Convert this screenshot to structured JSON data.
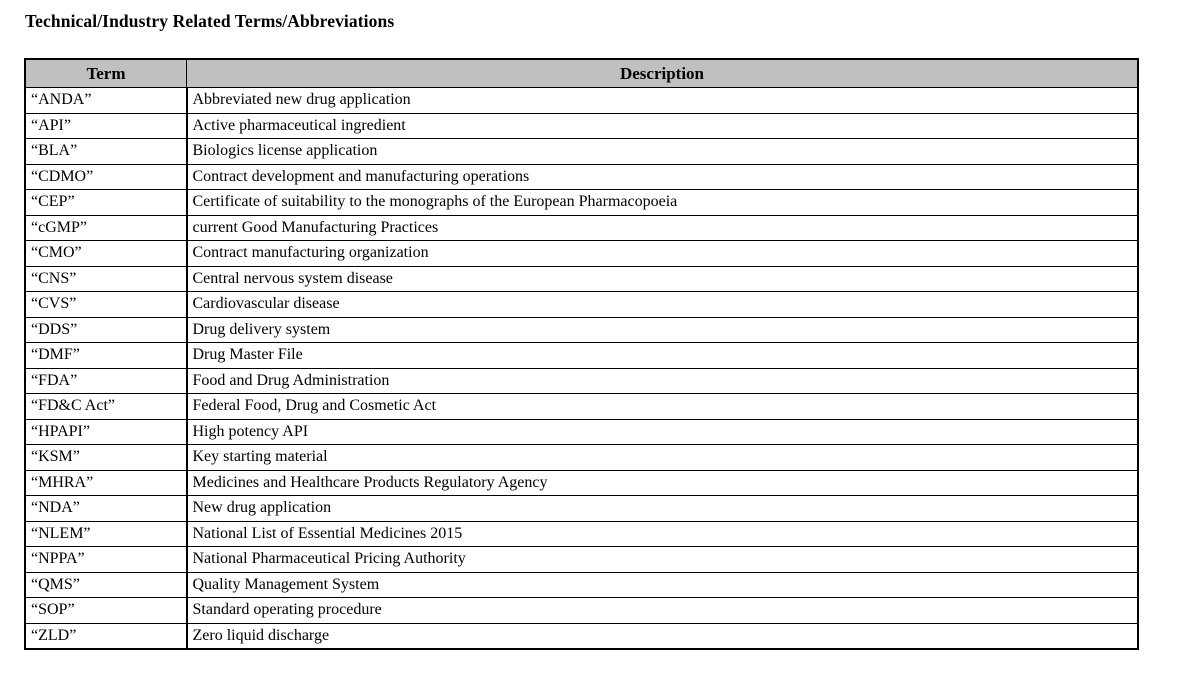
{
  "page": {
    "title": "Technical/Industry Related Terms/Abbreviations"
  },
  "table": {
    "headers": [
      "Term",
      "Description"
    ],
    "rows": [
      {
        "term": "“ANDA”",
        "description": "Abbreviated new drug application"
      },
      {
        "term": "“API”",
        "description": "Active pharmaceutical ingredient"
      },
      {
        "term": "“BLA”",
        "description": "Biologics license application"
      },
      {
        "term": "“CDMO”",
        "description": "Contract development and manufacturing operations"
      },
      {
        "term": "“CEP”",
        "description": "Certificate of suitability to the monographs of the European Pharmacopoeia"
      },
      {
        "term": "“cGMP”",
        "description": "current Good Manufacturing Practices"
      },
      {
        "term": "“CMO”",
        "description": "Contract manufacturing organization"
      },
      {
        "term": "“CNS”",
        "description": "Central nervous system disease"
      },
      {
        "term": "“CVS”",
        "description": "Cardiovascular disease"
      },
      {
        "term": "“DDS”",
        "description": "Drug delivery system"
      },
      {
        "term": "“DMF”",
        "description": "Drug Master File"
      },
      {
        "term": "“FDA”",
        "description": "Food and Drug Administration"
      },
      {
        "term": "“FD&C Act”",
        "description": "Federal Food, Drug and Cosmetic Act"
      },
      {
        "term": "“HPAPI”",
        "description": "High potency API"
      },
      {
        "term": "“KSM”",
        "description": "Key starting material"
      },
      {
        "term": "“MHRA”",
        "description": "Medicines and Healthcare Products Regulatory Agency"
      },
      {
        "term": "“NDA”",
        "description": "New drug application"
      },
      {
        "term": "“NLEM”",
        "description": "National List of Essential Medicines 2015"
      },
      {
        "term": "“NPPA”",
        "description": "National Pharmaceutical Pricing Authority"
      },
      {
        "term": "“QMS”",
        "description": "Quality Management System"
      },
      {
        "term": "“SOP”",
        "description": "Standard operating procedure"
      },
      {
        "term": "“ZLD”",
        "description": "Zero liquid discharge"
      }
    ]
  },
  "colors": {
    "header_background": "#c0c0c0",
    "border": "#000000",
    "text": "#000000",
    "page_background": "#ffffff"
  }
}
